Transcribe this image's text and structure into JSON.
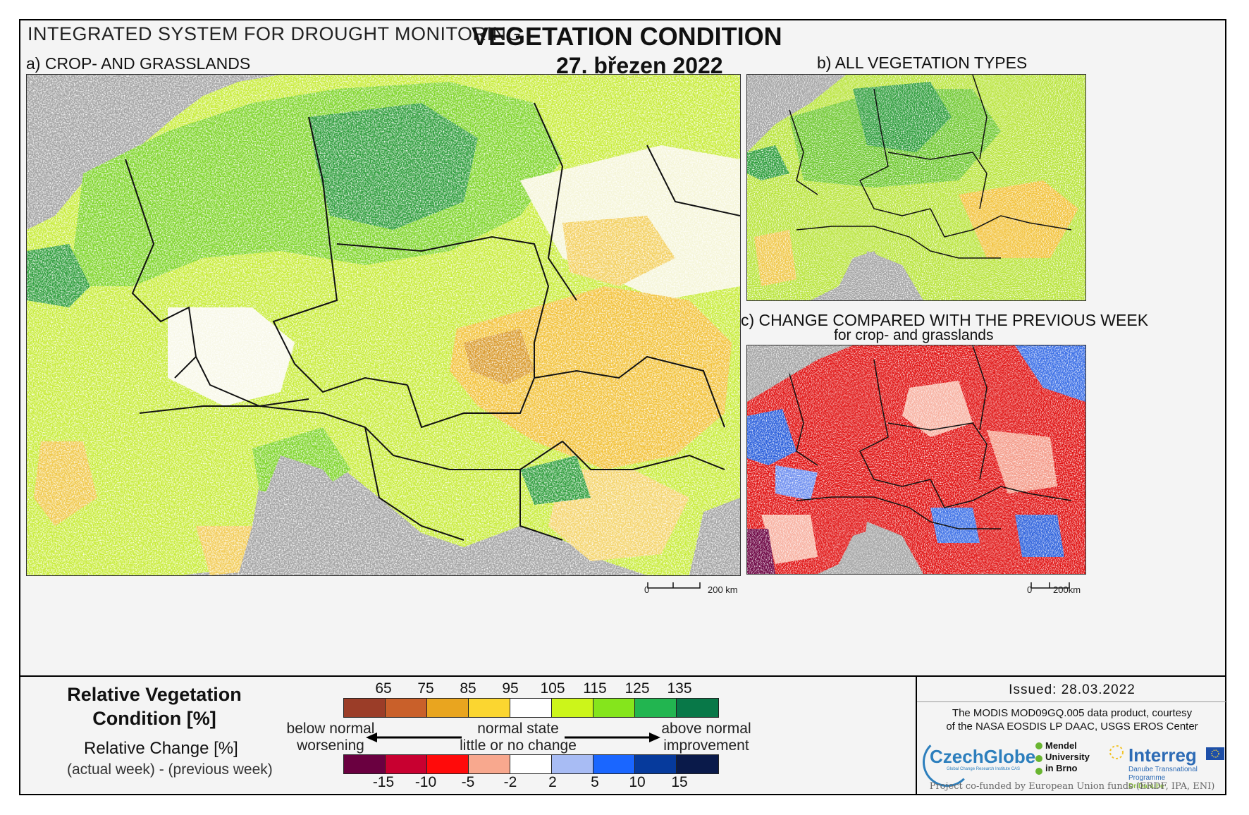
{
  "header": {
    "system_title": "INTEGRATED SYSTEM FOR DROUGHT MONITORING",
    "main_title": "VEGETATION CONDITION",
    "date": "27. březen 2022"
  },
  "panels": {
    "a_label": "a) CROP- AND GRASSLANDS",
    "b_label": "b) ALL VEGETATION TYPES",
    "c_label": "c) CHANGE COMPARED WITH THE PREVIOUS WEEK",
    "c_sublabel": "for crop- and grasslands",
    "a_scale": {
      "zero": "0",
      "dist": "200 km"
    },
    "c_scale": {
      "zero": "0",
      "dist": "200km"
    }
  },
  "legend": {
    "rvc_title_line1": "Relative Vegetation",
    "rvc_title_line2": "Condition [%]",
    "rc_title": "Relative Change [%]",
    "rc_subtitle": "(actual week) - (previous week)",
    "rvc_ticks": [
      "65",
      "75",
      "85",
      "95",
      "105",
      "115",
      "125",
      "135"
    ],
    "rvc_colors": [
      "#9b3d28",
      "#c9602a",
      "#e9a51f",
      "#fbd630",
      "#ffffff",
      "#ccf51a",
      "#85e51c",
      "#22b550",
      "#087848"
    ],
    "rc_ticks": [
      "-15",
      "-10",
      "-5",
      "-2",
      "2",
      "5",
      "10",
      "15"
    ],
    "rc_colors": [
      "#6a0040",
      "#c80030",
      "#ff0a0a",
      "#f8a88e",
      "#ffffff",
      "#a8bcf4",
      "#1a66ff",
      "#063a9c",
      "#0a1a4a"
    ],
    "left_text_line1": "below normal",
    "left_text_line2": "worsening",
    "center_text_line1": "normal state",
    "center_text_line2": "little or no change",
    "right_text_line1": "above normal",
    "right_text_line2": "improvement"
  },
  "info": {
    "issued": "Issued: 28.03.2022",
    "credit_line1": "The MODIS MOD09GQ.005 data product, courtesy",
    "credit_line2": "of the NASA EOSDIS LP DAAC, USGS EROS Center",
    "logo_czechglobe": "CzechGlobe",
    "logo_czechglobe_sub": "Global Change Research Institute CAS",
    "logo_mendel": [
      "Mendel",
      "University",
      "in Brno"
    ],
    "logo_interreg": "Interreg",
    "logo_interreg_sub1": "Danube Transnational Programme",
    "logo_interreg_sub2": "DriDanube",
    "cofunded": "Project co-funded by European Union funds (ERDF, IPA, ENI)"
  },
  "colors": {
    "sea": "#a3a3a3",
    "border": "#111111",
    "red_change": "#e01010",
    "blue_change": "#2a5fdc"
  }
}
